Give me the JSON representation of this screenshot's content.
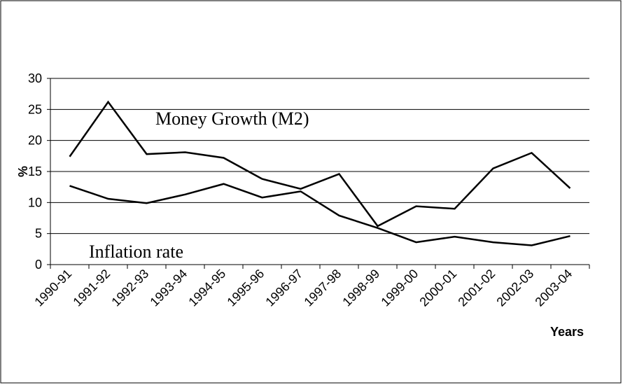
{
  "chart_data": {
    "type": "line",
    "categories": [
      "1990-91",
      "1991-92",
      "1992-93",
      "1993-94",
      "1994-95",
      "1995-96",
      "1996-97",
      "1997-98",
      "1998-99",
      "1999-00",
      "2000-01",
      "2001-02",
      "2002-03",
      "2003-04"
    ],
    "series": [
      {
        "name": "Money Growth (M2)",
        "color": "#000000",
        "values": [
          17.4,
          26.2,
          17.8,
          18.1,
          17.2,
          13.8,
          12.2,
          14.6,
          6.2,
          9.4,
          9.0,
          15.5,
          18.0,
          12.3
        ]
      },
      {
        "name": "Inflation rate",
        "color": "#000000",
        "values": [
          12.7,
          10.6,
          9.9,
          11.3,
          13.0,
          10.8,
          11.8,
          7.9,
          5.9,
          3.6,
          4.5,
          3.6,
          3.1,
          4.6
        ]
      }
    ],
    "ylabel": "%",
    "xlabel": "Years",
    "ylim": [
      0,
      30
    ],
    "yticks": [
      0,
      5,
      10,
      15,
      20,
      25,
      30
    ],
    "grid": true
  }
}
